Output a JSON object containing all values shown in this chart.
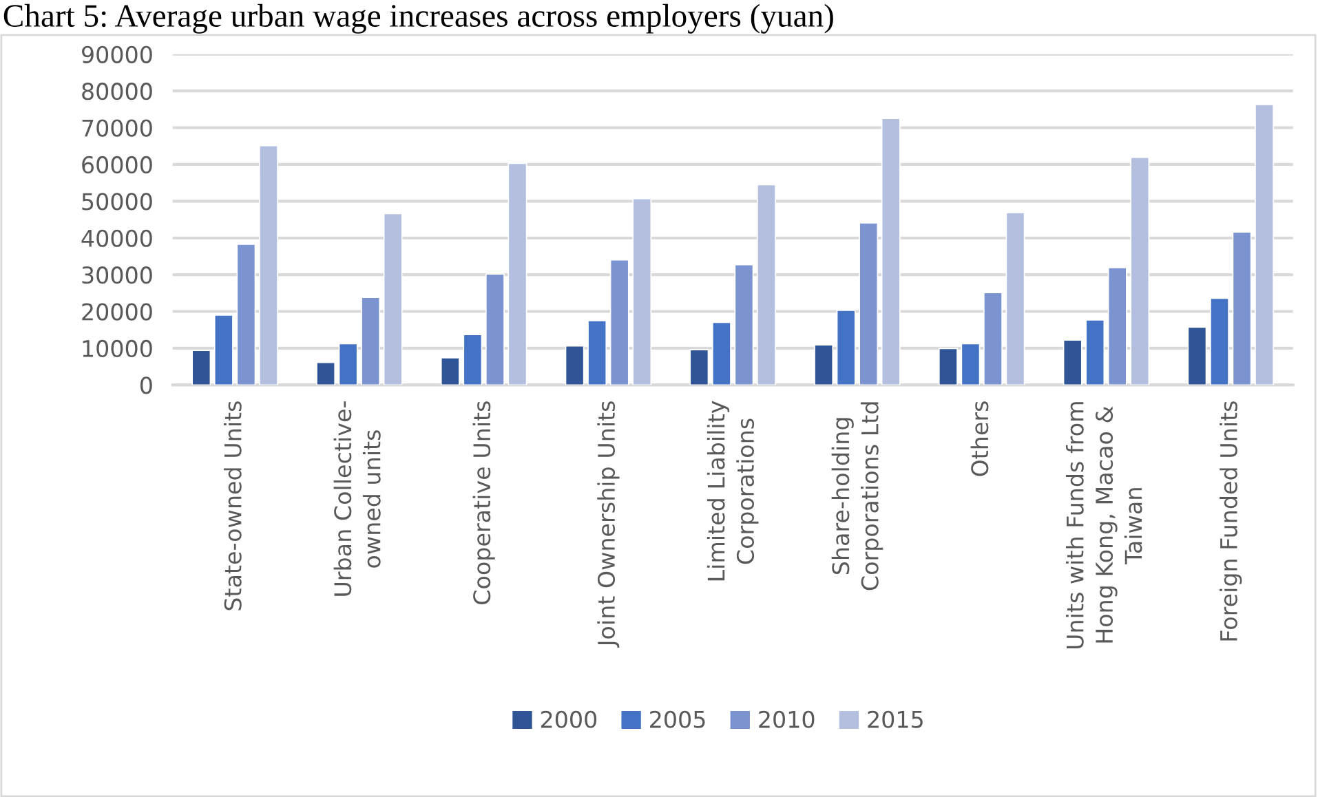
{
  "chart_data": {
    "type": "bar",
    "title": "Chart 5: Average urban wage increases across employers (yuan)",
    "categories": [
      "State-owned Units",
      "Urban Collective-\nowned units",
      "Cooperative Units",
      "Joint Ownership Units",
      "Limited Liability\nCorporations",
      "Share-holding\nCorporations Ltd",
      "Others",
      "Units with Funds from\nHong Kong, Macao &\nTaiwan",
      "Foreign Funded Units"
    ],
    "series": [
      {
        "name": "2000",
        "color": "#2f5597",
        "values": [
          9400,
          6100,
          7400,
          10600,
          9600,
          10900,
          9900,
          12200,
          15700
        ]
      },
      {
        "name": "2005",
        "color": "#4472c4",
        "values": [
          19000,
          11200,
          13700,
          17500,
          17000,
          20300,
          11200,
          17700,
          23600
        ]
      },
      {
        "name": "2010",
        "color": "#7b93d0",
        "values": [
          38300,
          23800,
          30200,
          34000,
          32700,
          44100,
          25100,
          31900,
          41600
        ]
      },
      {
        "name": "2015",
        "color": "#b4bfdf",
        "values": [
          65100,
          46600,
          60300,
          50700,
          54500,
          72500,
          46900,
          61900,
          76300
        ]
      }
    ],
    "ylim": [
      0,
      90000
    ],
    "yticks": [
      0,
      10000,
      20000,
      30000,
      40000,
      50000,
      60000,
      70000,
      80000,
      90000
    ],
    "grid": "y",
    "legend": "bottom"
  }
}
